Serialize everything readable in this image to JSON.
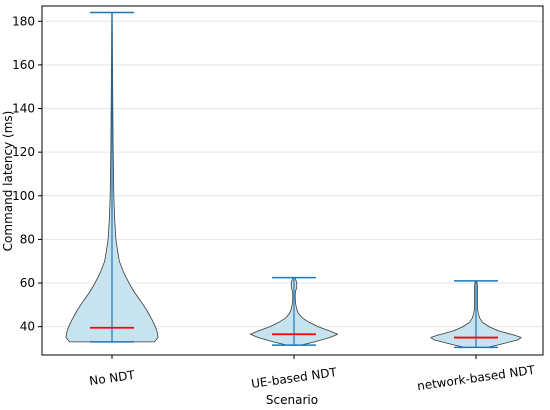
{
  "chart_data": {
    "type": "violin",
    "title": "",
    "xlabel": "Scenario",
    "ylabel": "Command latency (ms)",
    "categories": [
      "No NDT",
      "UE-based NDT",
      "network-based NDT"
    ],
    "ylim": [
      27,
      187
    ],
    "yticks": [
      40,
      60,
      80,
      100,
      120,
      140,
      160,
      180
    ],
    "grid": "horizontal",
    "colors": {
      "body_fill": "#c6e3ef",
      "body_edge": "#3a3a3a",
      "whisker": "#1f77b4",
      "median": "#ff0000",
      "grid": "#e6e6e6"
    },
    "series": [
      {
        "category": "No NDT",
        "min": 33,
        "max": 184,
        "median": 39.5,
        "profile": [
          [
            33,
            0.92
          ],
          [
            35,
            1.0
          ],
          [
            37,
            0.99
          ],
          [
            39,
            0.96
          ],
          [
            41,
            0.92
          ],
          [
            44,
            0.85
          ],
          [
            47,
            0.77
          ],
          [
            50,
            0.68
          ],
          [
            53,
            0.58
          ],
          [
            56,
            0.48
          ],
          [
            60,
            0.37
          ],
          [
            65,
            0.25
          ],
          [
            70,
            0.16
          ],
          [
            75,
            0.12
          ],
          [
            80,
            0.085
          ],
          [
            90,
            0.055
          ],
          [
            100,
            0.04
          ],
          [
            120,
            0.025
          ],
          [
            140,
            0.018
          ],
          [
            160,
            0.012
          ],
          [
            175,
            0.008
          ],
          [
            184,
            0.005
          ]
        ]
      },
      {
        "category": "UE-based NDT",
        "min": 31.5,
        "max": 62.5,
        "median": 36.5,
        "profile": [
          [
            31.5,
            0.15
          ],
          [
            33,
            0.45
          ],
          [
            35,
            0.78
          ],
          [
            36.5,
            0.95
          ],
          [
            38,
            0.78
          ],
          [
            40,
            0.52
          ],
          [
            42,
            0.33
          ],
          [
            44,
            0.18
          ],
          [
            46,
            0.1
          ],
          [
            48,
            0.06
          ],
          [
            50,
            0.04
          ],
          [
            52,
            0.03
          ],
          [
            54,
            0.025
          ],
          [
            56,
            0.03
          ],
          [
            58,
            0.06
          ],
          [
            60,
            0.06
          ],
          [
            61.5,
            0.04
          ],
          [
            62.5,
            0.015
          ]
        ]
      },
      {
        "category": "network-based NDT",
        "min": 30.5,
        "max": 61,
        "median": 35,
        "profile": [
          [
            30.5,
            0.25
          ],
          [
            32,
            0.55
          ],
          [
            34,
            0.92
          ],
          [
            35,
            0.98
          ],
          [
            36,
            0.85
          ],
          [
            38,
            0.5
          ],
          [
            40,
            0.28
          ],
          [
            42,
            0.14
          ],
          [
            44,
            0.08
          ],
          [
            46,
            0.05
          ],
          [
            48,
            0.035
          ],
          [
            50,
            0.03
          ],
          [
            53,
            0.03
          ],
          [
            56,
            0.03
          ],
          [
            58,
            0.035
          ],
          [
            60,
            0.025
          ],
          [
            61,
            0.01
          ]
        ]
      }
    ]
  }
}
